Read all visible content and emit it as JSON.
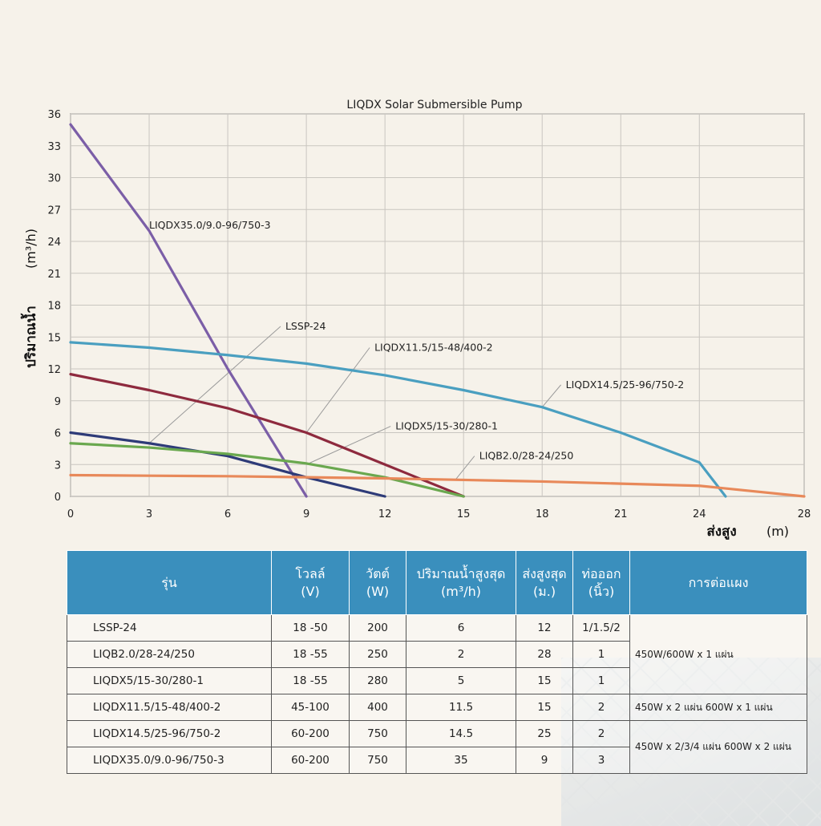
{
  "chart_data": {
    "type": "line",
    "title": "LIQDX Solar Submersible Pump",
    "xlabel": "ส่งสูง",
    "xunit": "(m)",
    "ylabel": "ปริมาณน้ำ",
    "yunit": "(m³/h)",
    "xlim": [
      0,
      28
    ],
    "ylim": [
      0,
      36
    ],
    "xticks": [
      0,
      3,
      6,
      9,
      12,
      15,
      18,
      21,
      24,
      28
    ],
    "yticks": [
      0,
      3,
      6,
      9,
      12,
      15,
      18,
      21,
      24,
      27,
      30,
      33,
      36
    ],
    "grid": true,
    "series": [
      {
        "name": "LIQDX35.0/9.0-96/750-3",
        "color": "#7b5ea7",
        "x": [
          0,
          3,
          6,
          9
        ],
        "y": [
          35,
          25,
          12,
          0
        ],
        "label_at": [
          3,
          25.5
        ],
        "anchor": [
          3,
          25.5
        ]
      },
      {
        "name": "LSSP-24",
        "color": "#2e3b78",
        "x": [
          0,
          3,
          6,
          9,
          12
        ],
        "y": [
          6,
          5,
          3.8,
          1.8,
          0
        ],
        "label_at": [
          8.2,
          16
        ],
        "anchor": [
          3,
          5
        ]
      },
      {
        "name": "LIQDX11.5/15-48/400-2",
        "color": "#8e2a3e",
        "x": [
          0,
          3,
          6,
          9,
          12,
          15
        ],
        "y": [
          11.5,
          10,
          8.3,
          6,
          3,
          0
        ],
        "label_at": [
          11.6,
          14
        ],
        "anchor": [
          9,
          6
        ]
      },
      {
        "name": "LIQDX14.5/25-96/750-2",
        "color": "#4a9fc0",
        "x": [
          0,
          3,
          6,
          9,
          12,
          15,
          18,
          21,
          24,
          25
        ],
        "y": [
          14.5,
          14,
          13.3,
          12.5,
          11.4,
          10,
          8.4,
          6,
          3.2,
          0
        ],
        "label_at": [
          18.9,
          10.5
        ],
        "anchor": [
          18,
          8.4
        ]
      },
      {
        "name": "LIQDX5/15-30/280-1",
        "color": "#6aa84f",
        "x": [
          0,
          3,
          6,
          9,
          12,
          15
        ],
        "y": [
          5,
          4.6,
          4,
          3.1,
          1.8,
          0
        ],
        "label_at": [
          12.4,
          6.6
        ],
        "anchor": [
          9,
          3
        ]
      },
      {
        "name": "LIQB2.0/28-24/250",
        "color": "#e8895a",
        "x": [
          0,
          3,
          6,
          9,
          12,
          15,
          18,
          21,
          24,
          28
        ],
        "y": [
          2,
          1.95,
          1.9,
          1.8,
          1.7,
          1.55,
          1.4,
          1.2,
          1,
          0
        ],
        "label_at": [
          15.6,
          3.8
        ],
        "anchor": [
          14.7,
          1.6
        ]
      }
    ]
  },
  "table": {
    "headers": [
      {
        "l1": "รุ่น",
        "l2": ""
      },
      {
        "l1": "โวลล์",
        "l2": "(V)"
      },
      {
        "l1": "วัตต์",
        "l2": "(W)"
      },
      {
        "l1": "ปริมาณน้ำสูงสุด",
        "l2": "(m³/h)"
      },
      {
        "l1": "ส่งสูงสุด",
        "l2": "(ม.)"
      },
      {
        "l1": "ท่อออก",
        "l2": "(นิ้ว)"
      },
      {
        "l1": "การต่อแผง",
        "l2": ""
      }
    ],
    "rows": [
      {
        "model": "LSSP-24",
        "volt": "18 -50",
        "watt": "200",
        "flow": "6",
        "head": "12",
        "pipe": "1/1.5/2"
      },
      {
        "model": "LIQB2.0/28-24/250",
        "volt": "18 -55",
        "watt": "250",
        "flow": "2",
        "head": "28",
        "pipe": "1"
      },
      {
        "model": "LIQDX5/15-30/280-1",
        "volt": "18 -55",
        "watt": "280",
        "flow": "5",
        "head": "15",
        "pipe": "1"
      },
      {
        "model": "LIQDX11.5/15-48/400-2",
        "volt": "45-100",
        "watt": "400",
        "flow": "11.5",
        "head": "15",
        "pipe": "2"
      },
      {
        "model": "LIQDX14.5/25-96/750-2",
        "volt": "60-200",
        "watt": "750",
        "flow": "14.5",
        "head": "25",
        "pipe": "2"
      },
      {
        "model": "LIQDX35.0/9.0-96/750-3",
        "volt": "60-200",
        "watt": "750",
        "flow": "35",
        "head": "9",
        "pipe": "3"
      }
    ],
    "panels": {
      "group1": "450W/600W x 1 แผ่น",
      "group2": "450W x 2 แผ่น   600W x 1 แผ่น",
      "group3": "450W x 2/3/4 แผ่น   600W x 2 แผ่น"
    }
  }
}
